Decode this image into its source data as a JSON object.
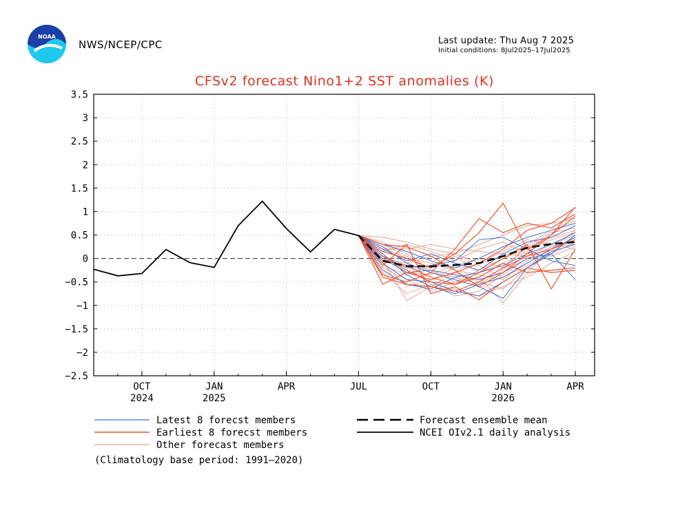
{
  "header": {
    "agency": "NWS/NCEP/CPC",
    "last_update": "Last update: Thu Aug  7 2025",
    "initial_conditions": "Initial conditions: 8Jul2025–17Jul2025",
    "logo_text": "NOAA"
  },
  "colors": {
    "latest": "#3a6fd8",
    "earliest": "#f0522a",
    "other": "#eaa294",
    "title": "#e0301e",
    "observed": "#000000"
  },
  "chart_data": {
    "type": "line",
    "title": "CFSv2 forecast Nino1+2 SST anomalies (K)",
    "xlabel": "",
    "ylabel": "",
    "ylim": [
      -2.5,
      3.5
    ],
    "yticks": [
      3.5,
      3,
      2.5,
      2,
      1.5,
      1,
      0.5,
      0,
      -0.5,
      -1,
      -1.5,
      -2,
      -2.5
    ],
    "ytick_labels": [
      "3.5",
      "3",
      "2.5",
      "2",
      "1.5",
      "1",
      "0.5",
      "0",
      "−0.5",
      "−1",
      "−1.5",
      "−2",
      "−2.5"
    ],
    "xlim": [
      0,
      20.8
    ],
    "x_month_labels": [
      {
        "x": 2,
        "label": "OCT",
        "year": "2024"
      },
      {
        "x": 5,
        "label": "JAN",
        "year": "2025"
      },
      {
        "x": 8,
        "label": "APR",
        "year": ""
      },
      {
        "x": 11,
        "label": "JUL",
        "year": ""
      },
      {
        "x": 14,
        "label": "OCT",
        "year": ""
      },
      {
        "x": 17,
        "label": "JAN",
        "year": "2026"
      },
      {
        "x": 20,
        "label": "APR",
        "year": ""
      }
    ],
    "x_label_note": "x = months since Aug 2024 (OCT 2024 = 2, JUL 2025 = 11, APR 2026 = 20)",
    "observed": {
      "name": "NCEI OIv2.1 daily analysis",
      "x": [
        0,
        1,
        2,
        3,
        4,
        5,
        6,
        7,
        8,
        9,
        10,
        11
      ],
      "y": [
        -0.23,
        -0.37,
        -0.32,
        0.19,
        -0.09,
        -0.19,
        0.7,
        1.22,
        0.64,
        0.14,
        0.62,
        0.49
      ]
    },
    "ensemble_mean": {
      "name": "Forecast ensemble mean",
      "x": [
        11,
        12,
        13,
        14,
        15,
        16,
        17,
        18,
        19,
        20
      ],
      "y": [
        0.49,
        -0.05,
        -0.16,
        -0.17,
        -0.14,
        -0.1,
        0.05,
        0.23,
        0.31,
        0.35
      ]
    },
    "members_x": [
      11,
      12,
      13,
      14,
      15,
      16,
      17,
      18,
      19,
      20
    ],
    "latest_members": [
      [
        0.49,
        0.25,
        -0.1,
        -0.3,
        -0.45,
        -0.6,
        -0.85,
        -0.2,
        0.1,
        0.5
      ],
      [
        0.49,
        0.1,
        -0.35,
        -0.6,
        -0.75,
        -0.55,
        -0.4,
        -0.1,
        0.2,
        0.45
      ],
      [
        0.49,
        0.05,
        -0.2,
        -0.15,
        -0.05,
        0.4,
        0.45,
        0.2,
        -0.05,
        -0.15
      ],
      [
        0.49,
        -0.1,
        -0.45,
        -0.5,
        -0.7,
        -0.8,
        -0.5,
        -0.2,
        0.15,
        0.3
      ],
      [
        0.49,
        0.3,
        0.15,
        -0.05,
        -0.2,
        0.0,
        0.25,
        0.45,
        0.6,
        0.75
      ],
      [
        0.49,
        0.0,
        -0.3,
        -0.25,
        -0.35,
        -0.45,
        -0.3,
        0.0,
        0.1,
        -0.45
      ],
      [
        0.49,
        0.2,
        -0.05,
        0.1,
        -0.1,
        -0.25,
        0.1,
        0.35,
        0.45,
        0.7
      ],
      [
        0.49,
        -0.25,
        -0.55,
        -0.65,
        -0.4,
        -0.3,
        -0.15,
        0.1,
        0.3,
        0.55
      ]
    ],
    "earliest_members": [
      [
        0.49,
        -0.55,
        -0.3,
        -0.45,
        -0.3,
        -0.1,
        0.2,
        0.6,
        0.75,
        1.08
      ],
      [
        0.49,
        -0.15,
        0.3,
        -0.75,
        -0.6,
        -0.88,
        -0.5,
        -0.2,
        -0.3,
        -0.25
      ],
      [
        0.49,
        0.15,
        0.0,
        -0.2,
        0.1,
        0.55,
        1.18,
        0.2,
        0.5,
        0.9
      ],
      [
        0.49,
        -0.35,
        -0.5,
        -0.3,
        0.2,
        0.85,
        0.55,
        0.75,
        0.65,
        0.95
      ],
      [
        0.49,
        0.05,
        -0.25,
        -0.5,
        -0.55,
        -0.3,
        0.0,
        0.3,
        -0.65,
        0.2
      ],
      [
        0.49,
        -0.05,
        -0.15,
        -0.4,
        -0.55,
        -0.4,
        -0.1,
        -0.3,
        -0.25,
        -0.2
      ],
      [
        0.49,
        0.3,
        0.25,
        0.05,
        -0.25,
        -0.6,
        -0.3,
        0.1,
        0.5,
        1.1
      ],
      [
        0.49,
        -0.4,
        -0.55,
        -0.6,
        -0.7,
        -0.5,
        -0.2,
        0.05,
        0.2,
        0.4
      ]
    ],
    "other_members": [
      [
        0.49,
        0.35,
        0.1,
        -0.25,
        -0.5,
        -0.4,
        -0.95,
        -0.3,
        0.2,
        0.6
      ],
      [
        0.49,
        0.45,
        0.35,
        0.2,
        0.1,
        0.3,
        0.5,
        0.7,
        0.75,
        0.85
      ],
      [
        0.49,
        -0.3,
        -0.75,
        -0.55,
        -0.65,
        -0.8,
        -0.6,
        -0.4,
        -0.1,
        0.15
      ],
      [
        0.49,
        0.2,
        0.2,
        0.3,
        0.2,
        0.15,
        0.1,
        0.05,
        0.3,
        0.5
      ],
      [
        0.49,
        -0.05,
        -0.9,
        -0.6,
        -0.3,
        -0.5,
        -0.65,
        -0.2,
        0.1,
        0.35
      ],
      [
        0.49,
        0.1,
        -0.3,
        -0.35,
        -0.15,
        0.0,
        -0.2,
        0.25,
        0.55,
        0.65
      ],
      [
        0.49,
        0.25,
        0.0,
        -0.1,
        -0.25,
        -0.35,
        -0.45,
        -0.05,
        0.2,
        0.45
      ],
      [
        0.49,
        -0.15,
        -0.35,
        -0.15,
        0.05,
        -0.3,
        -0.1,
        0.15,
        0.4,
        0.55
      ],
      [
        0.49,
        0.05,
        -0.15,
        -0.55,
        -0.8,
        -0.7,
        -0.35,
        0.0,
        0.25,
        0.3
      ],
      [
        0.49,
        0.15,
        0.3,
        0.15,
        -0.05,
        0.2,
        0.35,
        0.1,
        0.05,
        0.25
      ],
      [
        0.49,
        -0.2,
        -0.45,
        -0.7,
        -0.5,
        -0.25,
        0.0,
        0.2,
        0.45,
        0.6
      ],
      [
        0.49,
        0.3,
        0.05,
        -0.3,
        -0.4,
        -0.55,
        -0.25,
        0.3,
        0.6,
        0.8
      ],
      [
        0.49,
        0.0,
        -0.1,
        0.05,
        0.1,
        -0.1,
        0.15,
        0.4,
        0.3,
        0.2
      ],
      [
        0.49,
        -0.1,
        -0.6,
        -0.45,
        -0.2,
        -0.15,
        -0.4,
        -0.15,
        0.15,
        0.45
      ]
    ],
    "legend": {
      "latest": "Latest 8 forecst members",
      "earliest": "Earliest 8 forecst members",
      "other": "Other forecast members",
      "mean": "Forecast ensemble mean",
      "observed": "NCEI OIv2.1 daily analysis",
      "note": "(Climatology base period: 1991–2020)"
    }
  }
}
